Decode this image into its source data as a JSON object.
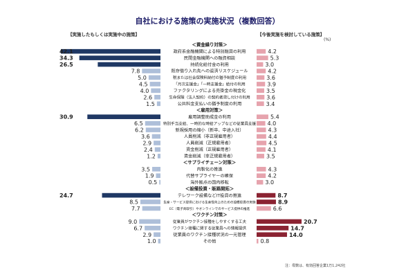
{
  "chart_data": {
    "type": "bar",
    "title": "自社における施策の実施状況（複数回答）",
    "left_header": "【実施したもしくは実施中の施策】",
    "right_header": "【今後実施を検討している施策】",
    "unit": "(%)",
    "footnote": "注：母数は、有効回答企業1万1,242社",
    "groups": [
      {
        "name": "＜資金繰り対策＞",
        "items": [
          {
            "label": "政府系金融機関による特別融資の利用",
            "implemented": 42.1,
            "considering": 4.2
          },
          {
            "label": "民間金融機関への融資相談",
            "implemented": 34.3,
            "considering": 5.3
          },
          {
            "label": "持続化給付金の利用",
            "implemented": 26.5,
            "considering": 3.0
          },
          {
            "label": "既存借り入れ先への返済リスケジュール",
            "implemented": 7.8,
            "considering": 4.2
          },
          {
            "label": "税または社会保険料納付の猶予制度の利用",
            "implemented": 5.0,
            "considering": 3.6
          },
          {
            "label": "「月次支援金」「一時支援金」給付の利用",
            "implemented": 4.5,
            "considering": 3.9
          },
          {
            "label": "ファクタリングによる売掛金の現金化",
            "implemented": 4.0,
            "considering": 3.5
          },
          {
            "label": "生命保険（法人契約）の契約者貸し付けの利用",
            "implemented": 2.6,
            "considering": 3.6
          },
          {
            "label": "公共料金支払いの猶予制度の利用",
            "implemented": 1.5,
            "considering": 3.4
          }
        ]
      },
      {
        "name": "＜雇用対策＞",
        "items": [
          {
            "label": "雇用調整助成金の利用",
            "implemented": 30.9,
            "considering": 5.4
          },
          {
            "label": "特別手当支給、一時的な時給アップなどの従業員支援",
            "implemented": 6.5,
            "considering": 4.0
          },
          {
            "label": "新規採用の縮小（新卒、中途入社）",
            "implemented": 6.2,
            "considering": 4.3
          },
          {
            "label": "人員削減（非正規雇用者）",
            "implemented": 3.6,
            "considering": 4.4
          },
          {
            "label": "人員削減（正規雇用者）",
            "implemented": 2.9,
            "considering": 4.5
          },
          {
            "label": "賃金削減（正規雇用者）",
            "implemented": 2.4,
            "considering": 4.1
          },
          {
            "label": "賃金削減（非正規雇用者）",
            "implemented": 1.2,
            "considering": 3.5
          }
        ]
      },
      {
        "name": "＜サプライチェーン対策＞",
        "items": [
          {
            "label": "内製化の推進",
            "implemented": 3.5,
            "considering": 4.3
          },
          {
            "label": "代替サプライヤーの確保",
            "implemented": 1.9,
            "considering": 4.2
          },
          {
            "label": "海外拠点の国内移転",
            "implemented": 0.5,
            "considering": 3.0
          }
        ]
      },
      {
        "name": "＜設備投資・販路開拓＞",
        "items": [
          {
            "label": "テレワーク設備などIT投資の推進",
            "implemented": 24.7,
            "considering": 8.7
          },
          {
            "label": "生産・サービス提供における生産性向上のための設備投資の実施",
            "implemented": 8.5,
            "considering": 8.9
          },
          {
            "label": "EC（電子商取引）やオンラインでのサービス提供の推進",
            "implemented": 7.7,
            "considering": 6.6
          }
        ]
      },
      {
        "name": "＜ワクチン対策＞",
        "items": [
          {
            "label": "従業員がワクチン接種をしやすくする工夫",
            "implemented": 9.0,
            "considering": 20.7
          },
          {
            "label": "ワクチン接種に関する従業員への情報提供",
            "implemented": 6.7,
            "considering": 14.7
          },
          {
            "label": "従業員のワクチン接種状況の一元管理",
            "implemented": 2.9,
            "considering": 14.0
          },
          {
            "label": "その他",
            "implemented": 1.0,
            "considering": 0.8
          }
        ]
      }
    ],
    "colors": {
      "left_bar": "#1f3864",
      "left_bar_light": "#aebfd9",
      "right_bar": "#8b2332",
      "right_bar_light": "#e6a3ad"
    },
    "left_threshold": 20,
    "right_threshold": 8
  }
}
